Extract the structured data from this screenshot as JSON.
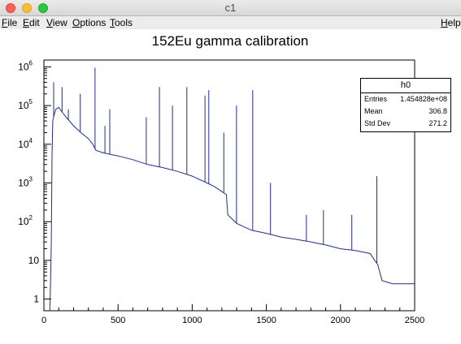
{
  "window": {
    "title": "c1"
  },
  "menu": {
    "file": {
      "first": "F",
      "rest": "ile"
    },
    "edit": {
      "first": "E",
      "rest": "dit"
    },
    "view": {
      "first": "V",
      "rest": "iew"
    },
    "options": {
      "first": "O",
      "rest": "ptions"
    },
    "tools": {
      "first": "T",
      "rest": "ools"
    },
    "help": {
      "first": "H",
      "rest": "elp"
    }
  },
  "stats": {
    "name": "h0",
    "rows": [
      {
        "label": "Entries",
        "value": "1.454828e+08"
      },
      {
        "label": "Mean",
        "value": "306.8"
      },
      {
        "label": "Std Dev",
        "value": "271.2"
      }
    ]
  },
  "chart_data": {
    "type": "line",
    "title": "152Eu gamma calibration",
    "xlabel": "",
    "ylabel": "",
    "xlim": [
      0,
      2500
    ],
    "ylim": [
      0.5,
      1500000
    ],
    "log_y": true,
    "grid": false,
    "x_ticks": [
      0,
      500,
      1000,
      1500,
      2000,
      2500
    ],
    "y_ticks": [
      {
        "value": 1,
        "base": "1",
        "exp": ""
      },
      {
        "value": 10,
        "base": "10",
        "exp": ""
      },
      {
        "value": 100,
        "base": "10",
        "exp": "2"
      },
      {
        "value": 1000,
        "base": "10",
        "exp": "3"
      },
      {
        "value": 10000,
        "base": "10",
        "exp": "4"
      },
      {
        "value": 100000,
        "base": "10",
        "exp": "5"
      },
      {
        "value": 1000000,
        "base": "10",
        "exp": "6"
      }
    ],
    "line_color": "#1f2aa8",
    "series": [
      {
        "values": [
          [
            40,
            0.5
          ],
          [
            45,
            3
          ],
          [
            50,
            30
          ],
          [
            55,
            5000
          ],
          [
            60,
            40000
          ],
          [
            70,
            60000
          ],
          [
            80,
            80000
          ],
          [
            100,
            90000
          ],
          [
            120,
            70000
          ],
          [
            150,
            50000
          ],
          [
            200,
            30000
          ],
          [
            250,
            20000
          ],
          [
            300,
            14000
          ],
          [
            330,
            10000
          ],
          [
            350,
            7000
          ],
          [
            400,
            6000
          ],
          [
            500,
            5000
          ],
          [
            600,
            4000
          ],
          [
            700,
            3000
          ],
          [
            800,
            2500
          ],
          [
            900,
            2000
          ],
          [
            1000,
            1500
          ],
          [
            1100,
            1000
          ],
          [
            1150,
            800
          ],
          [
            1200,
            600
          ],
          [
            1230,
            500
          ],
          [
            1240,
            150
          ],
          [
            1300,
            90
          ],
          [
            1400,
            60
          ],
          [
            1500,
            50
          ],
          [
            1600,
            40
          ],
          [
            1700,
            35
          ],
          [
            1800,
            30
          ],
          [
            1900,
            25
          ],
          [
            2000,
            20
          ],
          [
            2100,
            18
          ],
          [
            2200,
            15
          ],
          [
            2230,
            10
          ],
          [
            2250,
            8
          ],
          [
            2280,
            3
          ],
          [
            2350,
            2.5
          ],
          [
            2400,
            2.5
          ],
          [
            2450,
            2.5
          ],
          [
            2500,
            2.5
          ]
        ]
      }
    ],
    "peaks": [
      [
        66,
        400000
      ],
      [
        122,
        300000
      ],
      [
        165,
        80000
      ],
      [
        245,
        200000
      ],
      [
        345,
        950000
      ],
      [
        412,
        30000
      ],
      [
        444,
        80000
      ],
      [
        690,
        50000
      ],
      [
        779,
        300000
      ],
      [
        867,
        100000
      ],
      [
        964,
        300000
      ],
      [
        1086,
        180000
      ],
      [
        1112,
        250000
      ],
      [
        1213,
        20000
      ],
      [
        1299,
        100000
      ],
      [
        1408,
        250000
      ],
      [
        1528,
        1000
      ],
      [
        1770,
        150
      ],
      [
        1885,
        200
      ],
      [
        2076,
        150
      ],
      [
        2245,
        1500
      ]
    ]
  }
}
